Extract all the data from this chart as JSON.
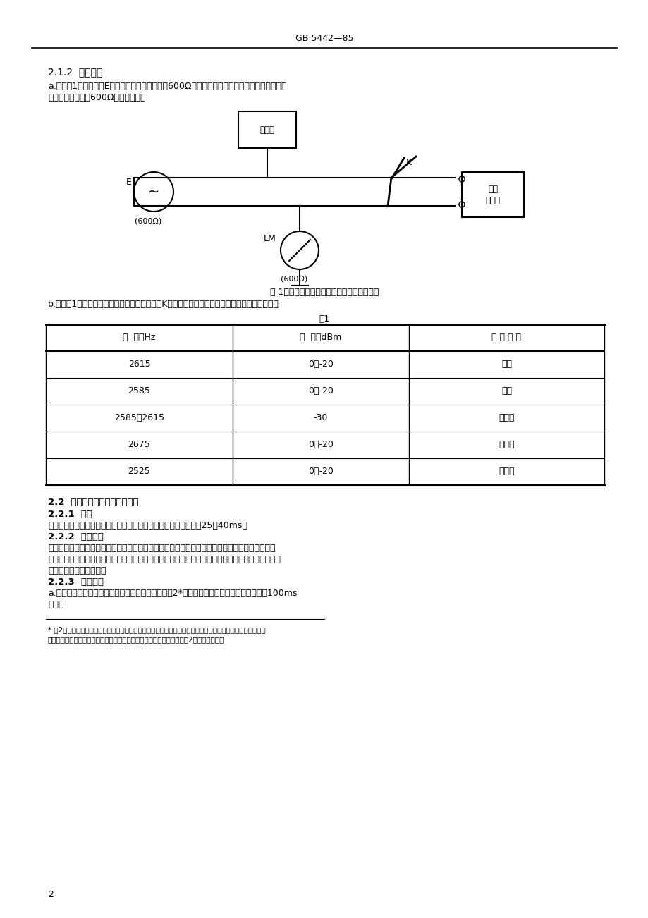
{
  "header": "GB 5442—85",
  "bg_color": "#ffffff",
  "section_212": "2.1.2  测量方法",
  "para_a": "a.　按图1连接电路，E为音频振荡器，输出阻抗600Ω，输出频率和电平可调并由频率计和电平",
  "para_a2": "表监视。电平表用600Ω阵抗挡测量。",
  "fig1_caption": "图 1　信号接收器动作、不动作指标测试电路",
  "para_b": "b.　按表1所列频率和电平组合，连续通断开关K，信号接收器应符合规定的动作和不动作要求。",
  "table1_title": "表1",
  "table_header_1": "频  率，Hz",
  "table_header_2": "电  平，dBm",
  "table_header_3": "动 作 情 况",
  "table_rows": [
    [
      "2615",
      "0～-20",
      "动作"
    ],
    [
      "2585",
      "0～-20",
      "动作"
    ],
    [
      "2585～2615",
      "-30",
      "不动作"
    ],
    [
      "2675",
      "0～-20",
      "不动作"
    ],
    [
      "2525",
      "0～-20",
      "不动作"
    ]
  ],
  "section_22": "2.2  信号接收器动作和释放时长",
  "section_221": "2.2.1  指标",
  "para_221": "　在通频带可靠接收电平范围内，信号接收器的动作和释放时长为25～40ms。",
  "section_222": "2.2.2  测试原理",
  "para_222_1": "　测试动作时长是用送入信号接收器输入端的信号脉冲前沿起动计数器计数，信号接收器动作时使",
  "para_222_2": "计数器停止计数。释放时长是送入信号接收器输入端的信号脉冲后沿起动计数器计数，信号接收器释",
  "para_222_3": "放时使计数器停止计数。",
  "section_223": "2.2.3  测试方法",
  "para_223a_1": "a.　采用频率计或毫秒计测时延迟时间的方法。按图2*连接电路，单脉冲发生器产生不小于100ms",
  "para_223a_2": "脉冲。",
  "footnote_line1": "* 图2为采用频率计测试信号接收器动作电路为继电器时（一副合接点）的动作，释放时长的测试电路。对其他",
  "footnote_line2": "　测试电路与其他类型信号接收器，如采用毫秒计的测试方法，可参照图2测试原理连接。",
  "page_num": "2",
  "freq_label": "频率计",
  "signal_box_line1": "信号",
  "signal_box_line2": "接收器",
  "e_label": "E",
  "e_ohm": "600Ω",
  "lm_label": "LM",
  "lm_ohm": "600Ω",
  "k_label": "K",
  "fig1_label": "图 1",
  "fig1_desc": "信号接收器动作、不动作指标测试电路"
}
